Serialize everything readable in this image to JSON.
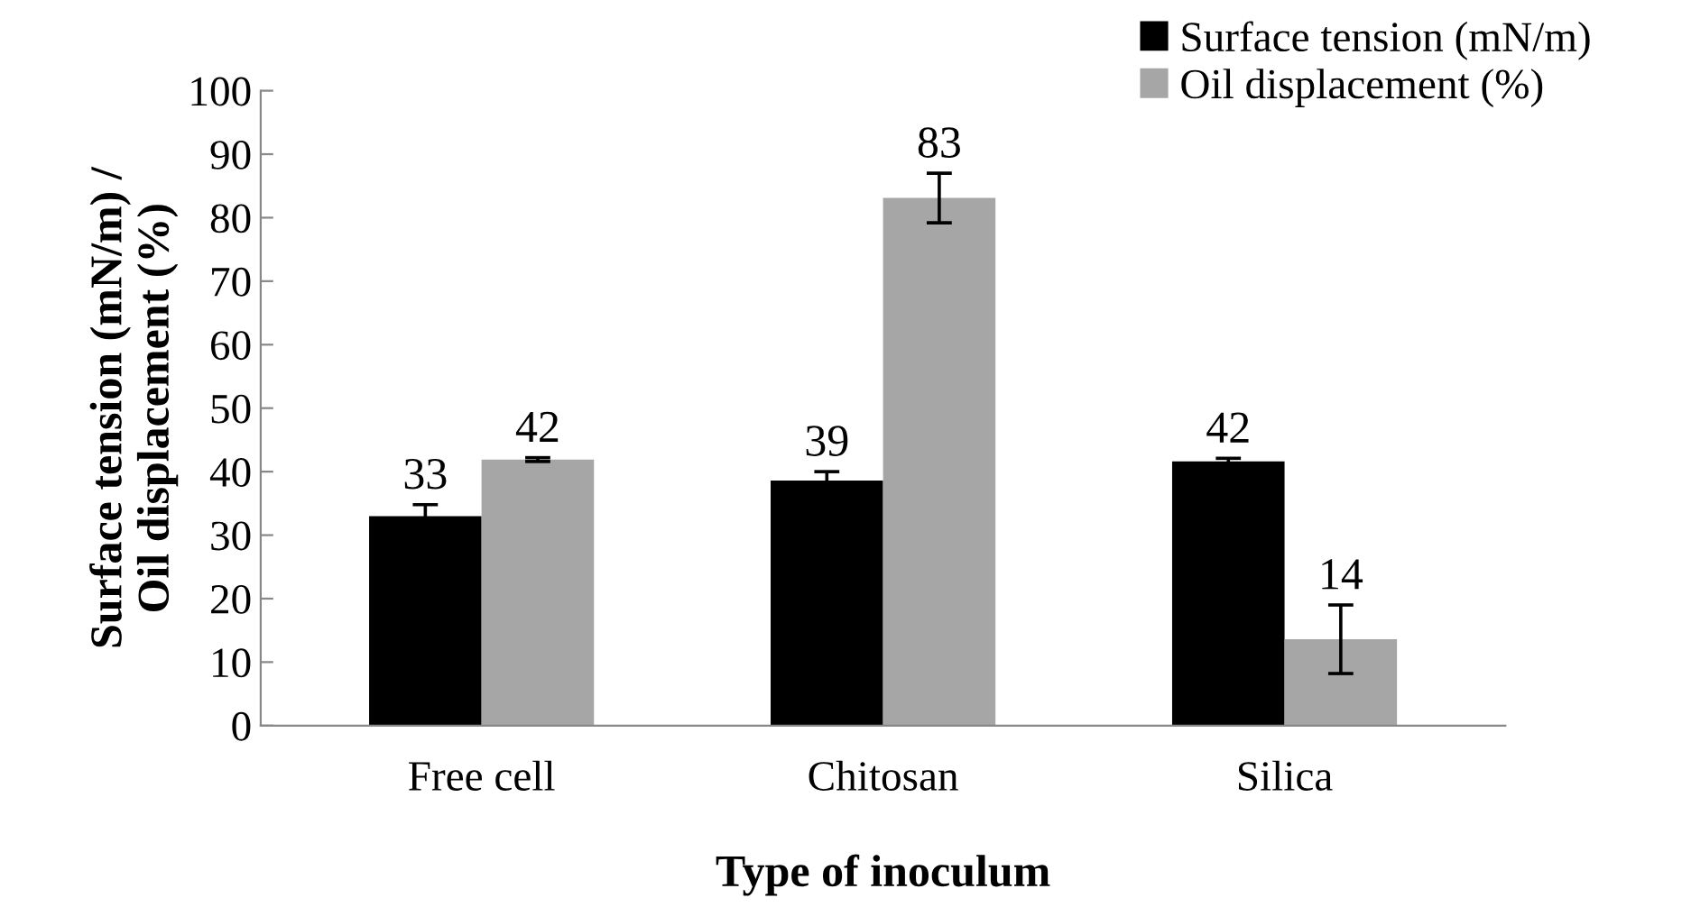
{
  "chart_data": {
    "type": "bar",
    "xlabel": "Type of inoculum",
    "ylabel": "Surface tension (mN/m) /\nOil displacement (%)",
    "categories": [
      "Free cell",
      "Chitosan",
      "Silica"
    ],
    "series": [
      {
        "name": "Surface tension (mN/m)",
        "color": "#000000",
        "values": [
          33,
          38.6,
          41.6
        ],
        "errors": [
          1.8,
          1.4,
          0.5
        ],
        "value_labels": [
          "33",
          "39",
          "42"
        ]
      },
      {
        "name": "Oil displacement (%)",
        "color": "#a6a6a6",
        "values": [
          41.9,
          83.1,
          13.6
        ],
        "errors": [
          0.3,
          3.9,
          5.4
        ],
        "value_labels": [
          "42",
          "83",
          "14"
        ]
      }
    ],
    "ylim": [
      0,
      100
    ],
    "yticks": [
      0,
      10,
      20,
      30,
      40,
      50,
      60,
      70,
      80,
      90,
      100
    ],
    "grid": false,
    "legend": "top right"
  }
}
